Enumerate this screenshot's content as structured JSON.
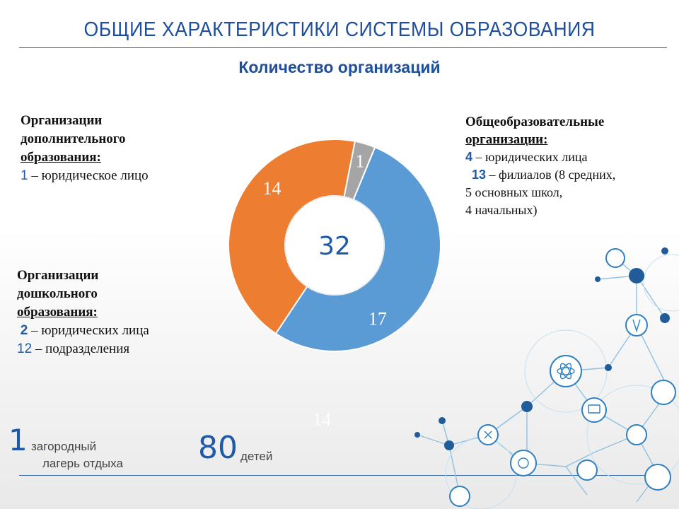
{
  "header": {
    "title": "ОБЩИЕ ХАРАКТЕРИСТИКИ СИСТЕМЫ ОБРАЗОВАНИЯ",
    "subtitle": "Количество организаций"
  },
  "left_top": {
    "line1": "Организации",
    "line2": "дополнительного",
    "line3": "образования:",
    "count": "1",
    "count_text": " – юридическое лицо"
  },
  "left_bottom": {
    "line1": "Организации",
    "line2": "дошкольного",
    "line3": "образования:",
    "count1": "2",
    "count1_text": " – юридических лица",
    "count2": "12",
    "count2_text": " – подразделения"
  },
  "right": {
    "line1": "Общеобразовательные",
    "line2": "организации:",
    "count1": "4",
    "count1_text": " – юридических лица",
    "count2": "13",
    "count2_text": " – филиалов (8 средних,",
    "line5": "5 основных школ,",
    "line6": "4 начальных)"
  },
  "chart_data": {
    "type": "pie",
    "style": "donut",
    "center_label": "32",
    "categories": [
      "Общеобразовательные организации",
      "Организации дошкольного образования",
      "Организации дополнительного образования"
    ],
    "values": [
      17,
      14,
      1
    ],
    "value_labels": [
      "17",
      "14",
      "1"
    ],
    "colors": [
      "#5b9bd5",
      "#ed7d31",
      "#a5a5a5"
    ],
    "extra_label": "14"
  },
  "footer": {
    "camp_count": "1",
    "camp_line1": "загородный",
    "camp_line2": "лагерь отдыха",
    "children_count": "80",
    "children_label": "детей"
  },
  "colors": {
    "accent": "#1e4f9c",
    "decor": "#2f7fc1"
  }
}
